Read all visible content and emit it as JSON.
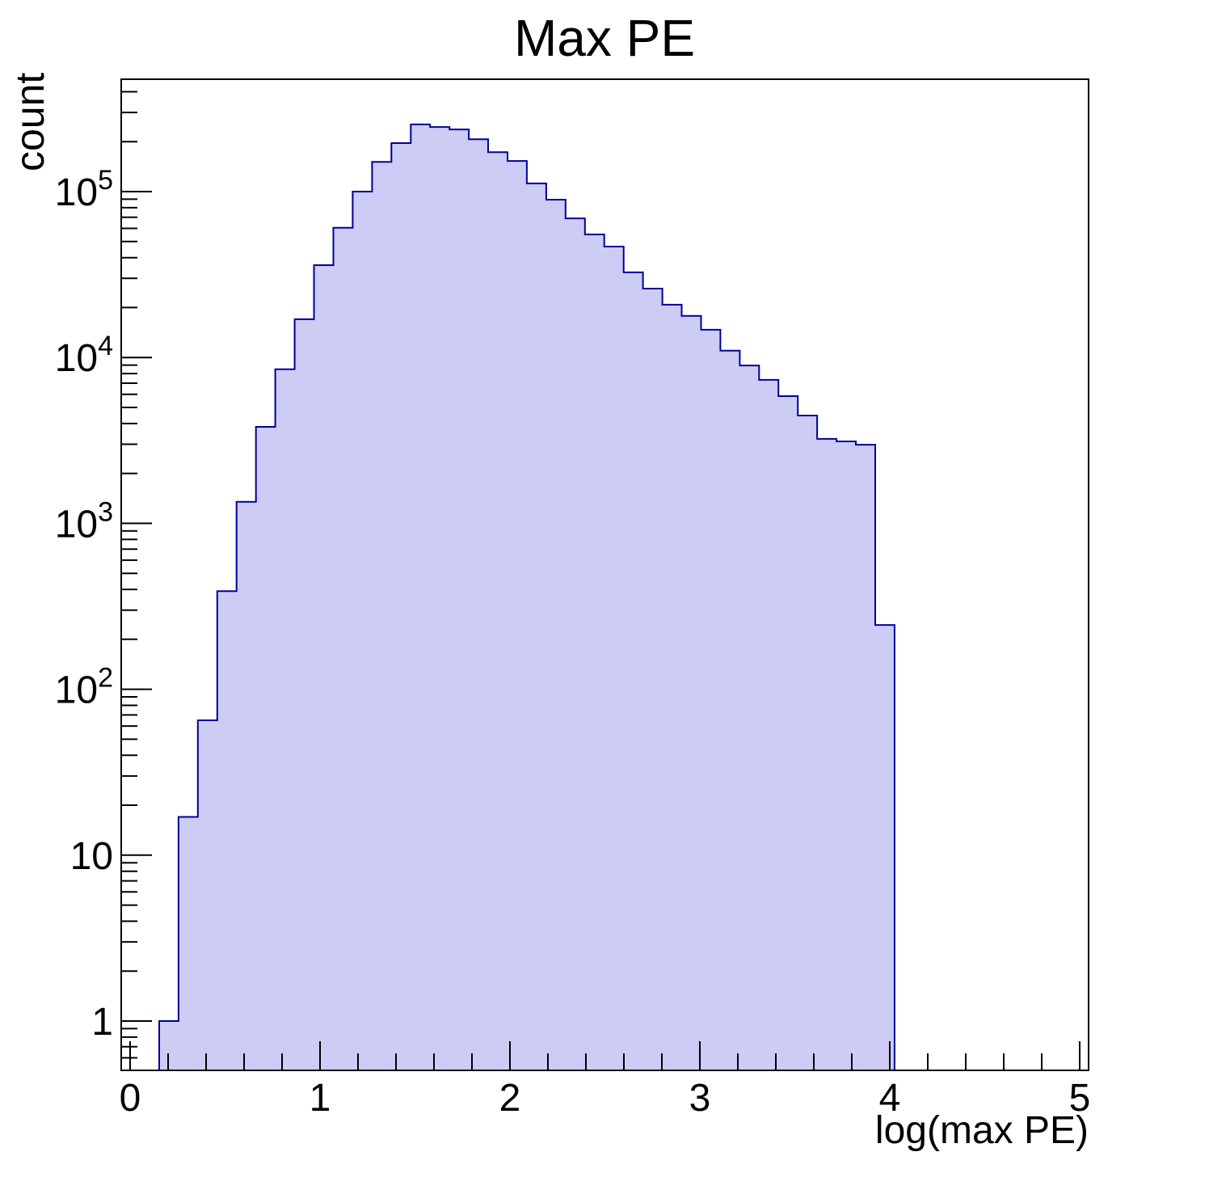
{
  "page": {
    "background": "#ffffff"
  },
  "chart_data": {
    "type": "bar",
    "subtype": "histogram",
    "title": "Max PE",
    "xlabel": "log(max PE)",
    "ylabel": "count",
    "x_scale": "linear",
    "y_scale": "log",
    "xlim": [
      -0.05,
      5.05
    ],
    "ylim": [
      0.5,
      475000
    ],
    "grid": false,
    "legend": "none",
    "histogram": {
      "first_bin_edge": 0.153,
      "bin_width": 0.1019,
      "counts": [
        1,
        17,
        65,
        390,
        1350,
        3820,
        8500,
        17000,
        36000,
        60500,
        100000,
        151000,
        196000,
        254000,
        245000,
        237000,
        207000,
        173000,
        153000,
        112000,
        89400,
        69000,
        55200,
        46600,
        32600,
        26000,
        20800,
        17800,
        14700,
        11000,
        8950,
        7330,
        5850,
        4470,
        3230,
        3120,
        2980,
        244
      ]
    },
    "x_ticks": {
      "major_values": [
        0,
        1,
        2,
        3,
        4,
        5
      ],
      "major_labels": [
        "0",
        "1",
        "2",
        "3",
        "4",
        "5"
      ],
      "minor_step": 0.2
    },
    "y_ticks": [
      {
        "value": 1,
        "base": "1",
        "exp": ""
      },
      {
        "value": 10,
        "base": "10",
        "exp": ""
      },
      {
        "value": 100,
        "base": "10",
        "exp": "2"
      },
      {
        "value": 1000,
        "base": "10",
        "exp": "3"
      },
      {
        "value": 10000,
        "base": "10",
        "exp": "4"
      },
      {
        "value": 100000,
        "base": "10",
        "exp": "5"
      }
    ],
    "colors": {
      "fill": "#ccccf4",
      "line": "#000099",
      "axis": "#000000",
      "text": "#000000",
      "background": "#ffffff"
    }
  }
}
